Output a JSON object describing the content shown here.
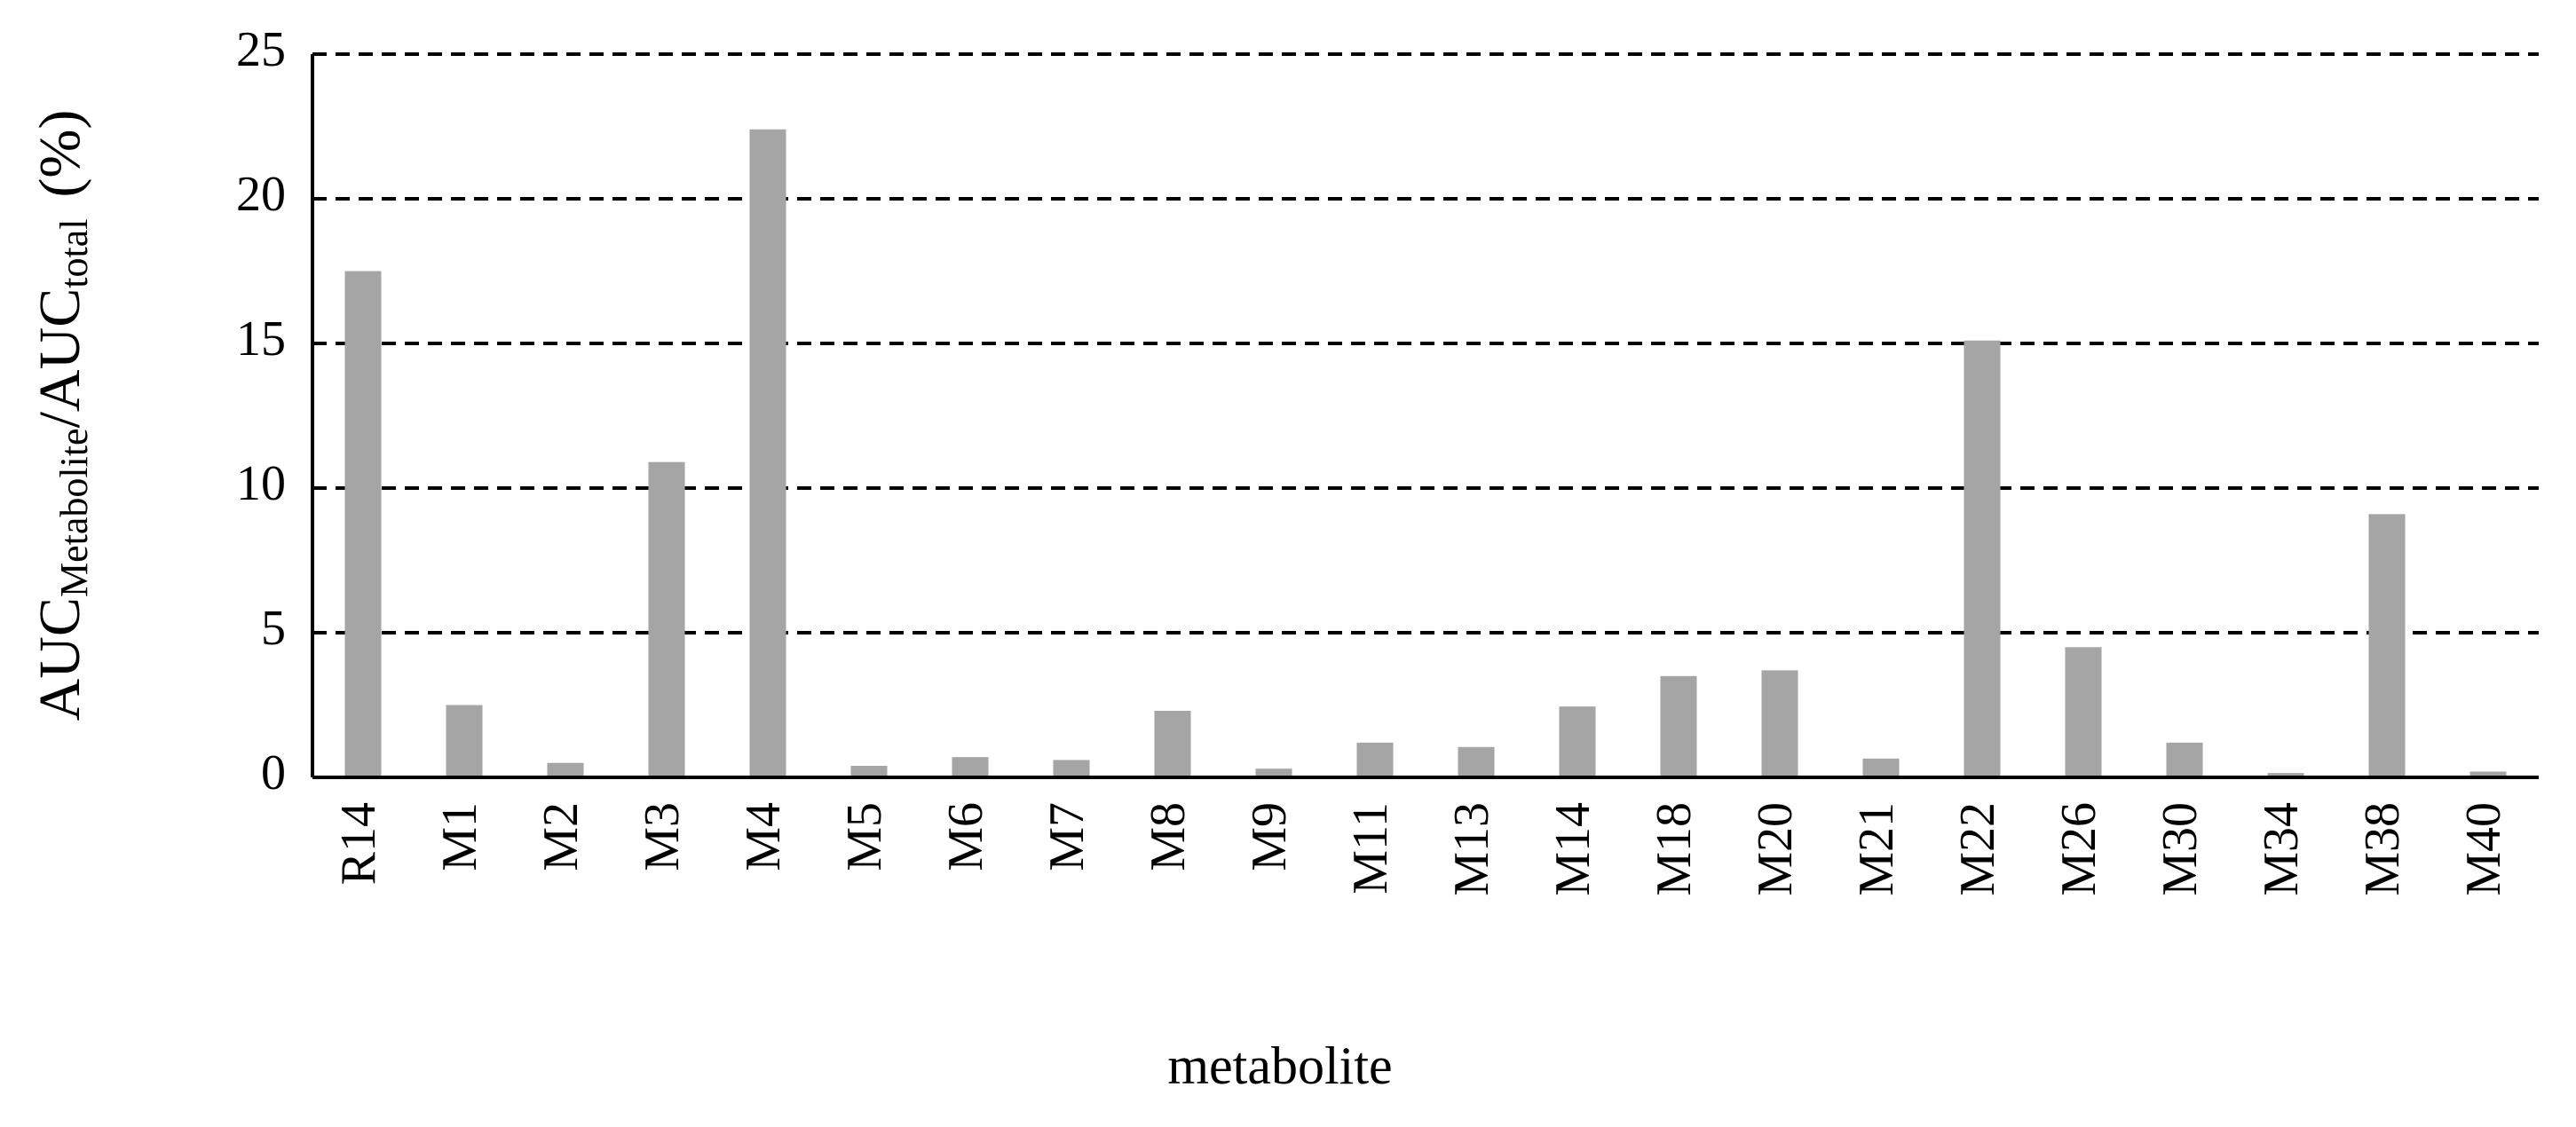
{
  "chart_data": {
    "type": "bar",
    "y_label": {
      "main1": "AUC",
      "sub1": "Metabolite",
      "main2": "/AUC",
      "sub2": "total",
      "unit": "(%)"
    },
    "x_label": "metabolite",
    "categories": [
      "R14",
      "M1",
      "M2",
      "M3",
      "M4",
      "M5",
      "M6",
      "M7",
      "M8",
      "M9",
      "M11",
      "M13",
      "M14",
      "M18",
      "M20",
      "M21",
      "M22",
      "M26",
      "M30",
      "M34",
      "M38",
      "M40"
    ],
    "values": [
      17.5,
      2.5,
      0.5,
      10.9,
      22.4,
      0.4,
      0.7,
      0.6,
      2.3,
      0.3,
      1.2,
      1.05,
      2.45,
      3.5,
      3.7,
      0.65,
      15.1,
      4.5,
      1.2,
      0.15,
      9.1,
      0.2
    ],
    "color": "#a5a5a5",
    "ylim": [
      0,
      25
    ],
    "yticks": [
      0,
      5,
      10,
      15,
      20,
      25
    ],
    "grid": true
  }
}
